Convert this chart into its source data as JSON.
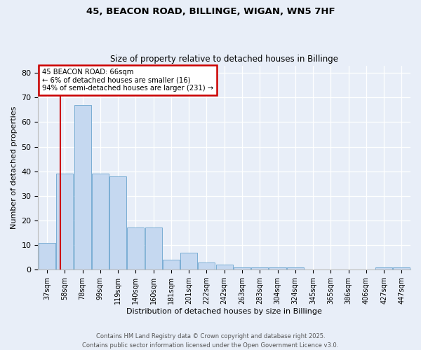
{
  "title1": "45, BEACON ROAD, BILLINGE, WIGAN, WN5 7HF",
  "title2": "Size of property relative to detached houses in Billinge",
  "xlabel": "Distribution of detached houses by size in Billinge",
  "ylabel": "Number of detached properties",
  "categories": [
    "37sqm",
    "58sqm",
    "78sqm",
    "99sqm",
    "119sqm",
    "140sqm",
    "160sqm",
    "181sqm",
    "201sqm",
    "222sqm",
    "242sqm",
    "263sqm",
    "283sqm",
    "304sqm",
    "324sqm",
    "345sqm",
    "365sqm",
    "386sqm",
    "406sqm",
    "427sqm",
    "447sqm"
  ],
  "values": [
    11,
    39,
    67,
    39,
    38,
    17,
    17,
    4,
    7,
    3,
    2,
    1,
    1,
    1,
    1,
    0,
    0,
    0,
    0,
    1,
    1
  ],
  "bar_color": "#c5d8f0",
  "bar_edge_color": "#7aadd4",
  "red_line_color": "#cc0000",
  "annotation_line1": "45 BEACON ROAD: 66sqm",
  "annotation_line2": "← 6% of detached houses are smaller (16)",
  "annotation_line3": "94% of semi-detached houses are larger (231) →",
  "annotation_box_color": "#ffffff",
  "annotation_box_edge": "#cc0000",
  "bg_color": "#e8eef8",
  "plot_bg_color": "#e8eef8",
  "ylim": [
    0,
    83
  ],
  "yticks": [
    0,
    10,
    20,
    30,
    40,
    50,
    60,
    70,
    80
  ],
  "footer1": "Contains HM Land Registry data © Crown copyright and database right 2025.",
  "footer2": "Contains public sector information licensed under the Open Government Licence v3.0."
}
